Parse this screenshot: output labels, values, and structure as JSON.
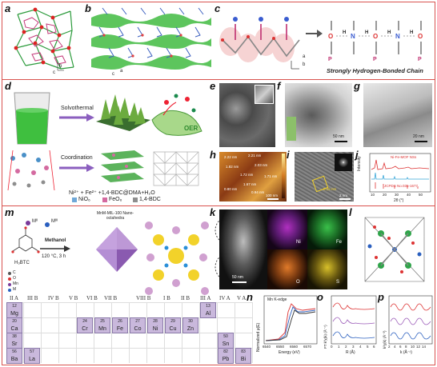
{
  "panels": {
    "a": "a",
    "b": "b",
    "c": "c",
    "d": "d",
    "e": "e",
    "f": "f",
    "g": "g",
    "h": "h",
    "i": "i",
    "j": "j",
    "k": "k",
    "l": "l",
    "m": "m",
    "n": "n",
    "o": "o",
    "p": "p"
  },
  "panel_a": {
    "axis_a": "a",
    "axis_b": "b",
    "axis_c": "c"
  },
  "panel_b": {
    "axis_a": "a",
    "axis_b": "b",
    "axis_c": "c"
  },
  "panel_c": {
    "title": "Strongly Hydrogen-Bonded Chain",
    "axis_a": "a",
    "axis_b": "b"
  },
  "panel_d": {
    "solvothermal": "Solvothermal",
    "coordination": "Coordination",
    "oer": "OER",
    "reaction": "Ni²⁺ + Fe²⁺ +1,4-BDC@DMA+H₂O",
    "legend_nio6": "NiO₆",
    "legend_feo6": "FeO₆",
    "legend_bdc": "1,4-BDC"
  },
  "panel_f": {
    "scale": "50 nm"
  },
  "panel_g": {
    "scale": "20 nm"
  },
  "panel_h": {
    "labels": [
      "2.22 nm",
      "2.21 nm",
      "1.82 nm",
      "2.03 nm",
      "1.72 nm",
      "1.71 nm",
      "0.80 nm",
      "1.67 nm",
      "0.94 nm"
    ],
    "scale": "100 nm"
  },
  "panel_i": {
    "scale": "2 nm",
    "lattice": "0.25 nm"
  },
  "panel_j": {
    "sample": "Ni-Fe-MOF NSs",
    "ref": "JCPDS No.035-1677",
    "ylabel": "Intensity",
    "xlabel": "2θ (°)",
    "ticks": [
      "10",
      "20",
      "30",
      "40",
      "50"
    ]
  },
  "panel_k": {
    "scale": "50 nm",
    "ni": "Ni",
    "fe": "Fe",
    "o": "O",
    "s": "S"
  },
  "panel_m": {
    "metal1": "Mᴵᴵ",
    "metal2": "Mᴵᴵᴵ",
    "ligand": "H₃BTC",
    "legend": [
      "C",
      "O",
      "Mn",
      "M"
    ],
    "solvent": "Methanol",
    "condition": "120 °C, 3 h",
    "product": "MnM-MIL-100 Nano-octahedra"
  },
  "periodic": {
    "groups": [
      "II A",
      "III B",
      "IV B",
      "V B",
      "VI B",
      "VII B",
      "VIII B",
      "I B",
      "II B",
      "III A",
      "IV A",
      "V A"
    ],
    "elements": [
      {
        "n": "12",
        "s": "Mg"
      },
      {
        "n": "20",
        "s": "Ca"
      },
      {
        "n": "38",
        "s": "Sr"
      },
      {
        "n": "56",
        "s": "Ba"
      },
      {
        "n": "57",
        "s": "La"
      },
      {
        "n": "24",
        "s": "Cr"
      },
      {
        "n": "25",
        "s": "Mn"
      },
      {
        "n": "26",
        "s": "Fe"
      },
      {
        "n": "27",
        "s": "Co"
      },
      {
        "n": "28",
        "s": "Ni"
      },
      {
        "n": "29",
        "s": "Cu"
      },
      {
        "n": "30",
        "s": "Zn"
      },
      {
        "n": "13",
        "s": "Al"
      },
      {
        "n": "50",
        "s": "Sn"
      },
      {
        "n": "82",
        "s": "Pb"
      },
      {
        "n": "83",
        "s": "Bi"
      }
    ]
  },
  "panel_n": {
    "title": "Mn K-edge",
    "xlabel": "Energy (eV)",
    "ylabel": "Normalized μ(E)",
    "ticks": [
      "6540",
      "6550",
      "6560",
      "6570"
    ],
    "yticks": [
      "0.0",
      "0.5",
      "1.0",
      "1.5"
    ]
  },
  "panel_o": {
    "xlabel": "R (Å)",
    "ylabel": "FT k³χ(k) (Å⁻⁴)",
    "ticks": [
      "0",
      "1",
      "2",
      "3",
      "4",
      "5",
      "6"
    ]
  },
  "panel_p": {
    "xlabel": "k (Å⁻¹)",
    "ylabel": "k³χ(k) (Å⁻³)",
    "ticks": [
      "2",
      "4",
      "6",
      "8",
      "10",
      "12",
      "14"
    ]
  },
  "colors": {
    "frame": "#d9534f",
    "periodic_highlight": "#c9b8dc",
    "green_sheet": "#3aa33a"
  }
}
